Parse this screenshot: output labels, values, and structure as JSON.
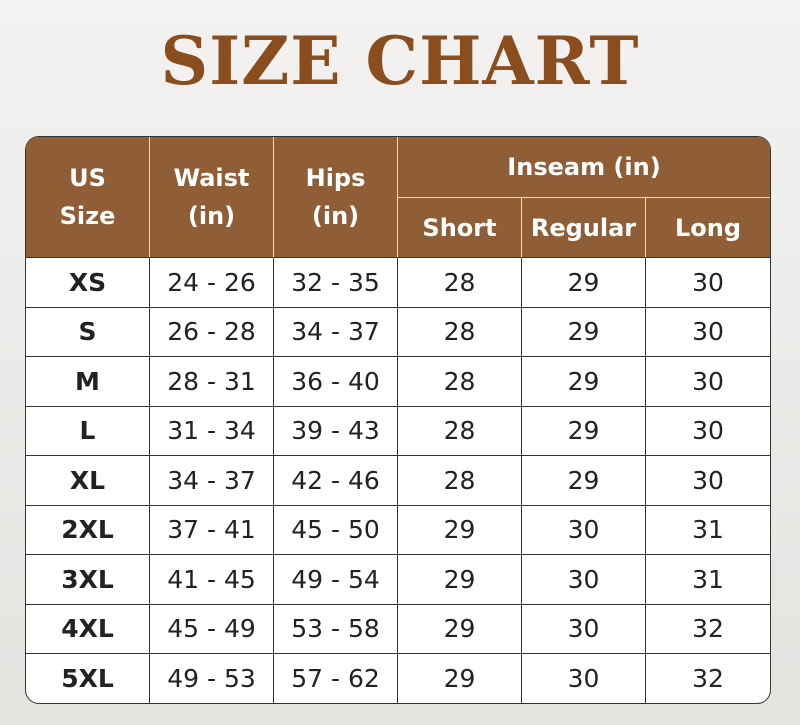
{
  "title": "SIZE CHART",
  "colors": {
    "title": "#8a4d1e",
    "header_bg": "#8f5e36",
    "header_text": "#ffffff"
  },
  "chart_data": {
    "type": "table",
    "title": "SIZE CHART",
    "headers": {
      "size": "US Size",
      "waist": "Waist (in)",
      "hips": "Hips (in)",
      "inseam": "Inseam (in)",
      "short": "Short",
      "regular": "Regular",
      "long": "Long"
    },
    "rows": [
      [
        "XS",
        "24 - 26",
        "32 - 35",
        "28",
        "29",
        "30"
      ],
      [
        "S",
        "26 - 28",
        "34 - 37",
        "28",
        "29",
        "30"
      ],
      [
        "M",
        "28 - 31",
        "36 - 40",
        "28",
        "29",
        "30"
      ],
      [
        "L",
        "31 - 34",
        "39 - 43",
        "28",
        "29",
        "30"
      ],
      [
        "XL",
        "34 - 37",
        "42 - 46",
        "28",
        "29",
        "30"
      ],
      [
        "2XL",
        "37 - 41",
        "45 - 50",
        "29",
        "30",
        "31"
      ],
      [
        "3XL",
        "41 - 45",
        "49 - 54",
        "29",
        "30",
        "31"
      ],
      [
        "4XL",
        "45 - 49",
        "53 - 58",
        "29",
        "30",
        "32"
      ],
      [
        "5XL",
        "49 - 53",
        "57 - 62",
        "29",
        "30",
        "32"
      ]
    ]
  }
}
